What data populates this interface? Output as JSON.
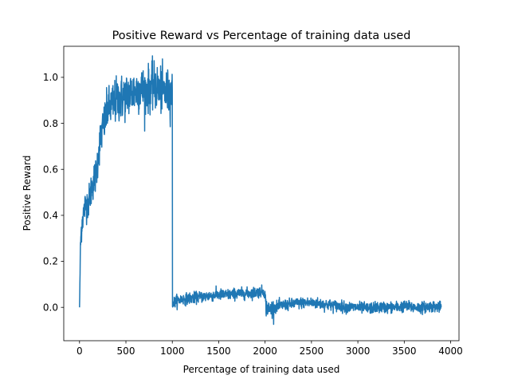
{
  "chart_data": {
    "type": "line",
    "title": "Positive Reward vs Percentage of training data used",
    "xlabel": "Percentage of training data used",
    "ylabel": "Positive Reward",
    "xlim": [
      -170,
      4090
    ],
    "ylim": [
      -0.145,
      1.135
    ],
    "x_ticks": [
      0,
      500,
      1000,
      1500,
      2000,
      2500,
      3000,
      3500,
      4000
    ],
    "y_ticks": [
      0.0,
      0.2,
      0.4,
      0.6,
      0.8,
      1.0
    ],
    "x_tick_labels": [
      "0",
      "500",
      "1000",
      "1500",
      "2000",
      "2500",
      "3000",
      "3500",
      "4000"
    ],
    "y_tick_labels": [
      "0.0",
      "0.2",
      "0.4",
      "0.6",
      "0.8",
      "1.0"
    ],
    "grid": false,
    "legend": "none",
    "series": [
      {
        "color": "#1f77b4",
        "x": [
          0,
          5,
          10,
          20,
          30,
          50,
          60,
          80,
          100,
          120,
          150,
          180,
          200,
          220,
          250,
          280,
          300,
          350,
          400,
          450,
          500,
          550,
          600,
          650,
          700,
          750,
          800,
          850,
          900,
          950,
          1000,
          1002,
          1005,
          1050,
          1100,
          1200,
          1300,
          1400,
          1500,
          1600,
          1700,
          1800,
          1900,
          1990,
          2000,
          2010,
          2050,
          2100,
          2200,
          2300,
          2400,
          2500,
          2600,
          2700,
          2800,
          2900,
          3000,
          3100,
          3200,
          3300,
          3400,
          3500,
          3600,
          3700,
          3800,
          3900
        ],
        "values": [
          0.0,
          0.12,
          0.27,
          0.34,
          0.38,
          0.42,
          0.44,
          0.45,
          0.46,
          0.5,
          0.55,
          0.58,
          0.66,
          0.72,
          0.78,
          0.82,
          0.86,
          0.88,
          0.9,
          0.91,
          0.92,
          0.93,
          0.94,
          0.95,
          0.94,
          0.95,
          0.96,
          0.95,
          0.94,
          0.93,
          0.93,
          0.0,
          0.02,
          0.03,
          0.035,
          0.04,
          0.045,
          0.05,
          0.055,
          0.055,
          0.06,
          0.06,
          0.065,
          0.07,
          0.05,
          0.0,
          -0.01,
          0.0,
          0.01,
          0.015,
          0.02,
          0.02,
          0.015,
          0.01,
          0.005,
          0.0,
          0.0,
          -0.005,
          0.0,
          0.0,
          0.0,
          0.005,
          0.0,
          0.0,
          0.005,
          0.0
        ]
      }
    ]
  }
}
